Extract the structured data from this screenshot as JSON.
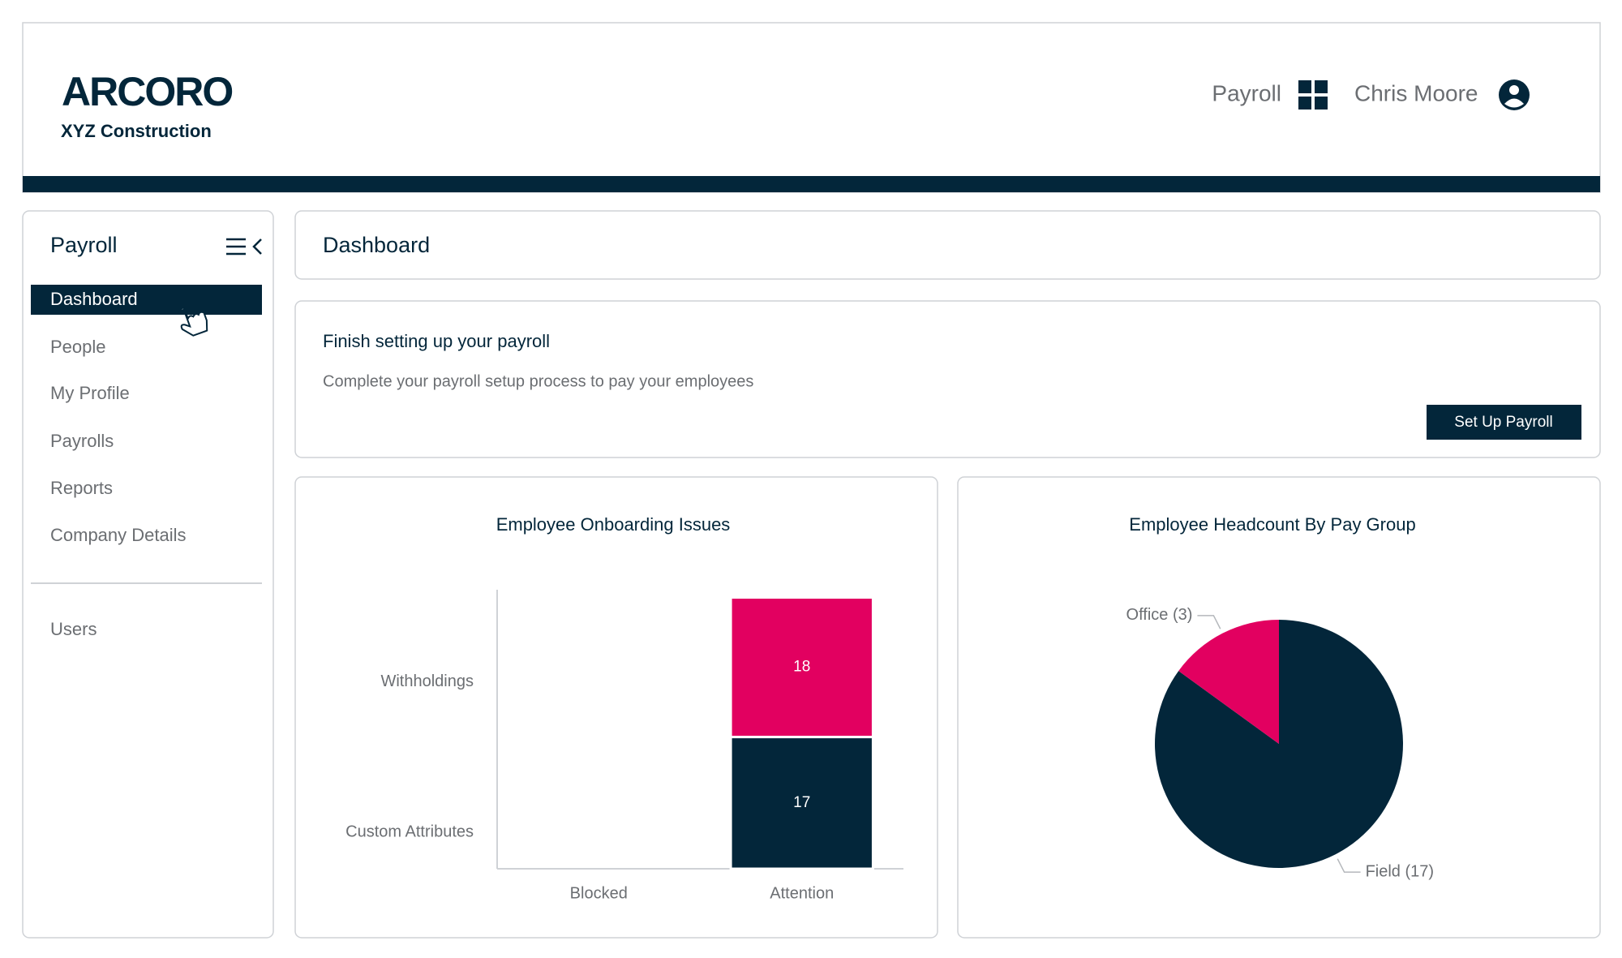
{
  "header": {
    "logo": "ARCORO",
    "company": "XYZ Construction",
    "app": "Payroll",
    "user": "Chris Moore"
  },
  "sidebar": {
    "title": "Payroll",
    "items": [
      "Dashboard",
      "People",
      "My Profile",
      "Payrolls",
      "Reports",
      "Company Details"
    ],
    "footer_items": [
      "Users"
    ]
  },
  "page": {
    "title": "Dashboard"
  },
  "setup_card": {
    "title": "Finish setting up your payroll",
    "description": "Complete your payroll setup process to pay your employees",
    "button": "Set Up Payroll"
  },
  "chart_data": [
    {
      "type": "bar",
      "stacked": true,
      "title": "Employee Onboarding Issues",
      "categories": [
        "Blocked",
        "Attention"
      ],
      "series": [
        {
          "name": "Custom Attributes",
          "color": "#03263a",
          "values": [
            0,
            17
          ]
        },
        {
          "name": "Withholdings",
          "color": "#e20060",
          "values": [
            0,
            18
          ]
        }
      ],
      "ylim": [
        0,
        36
      ]
    },
    {
      "type": "pie",
      "title": "Employee Headcount By Pay Group",
      "values": [
        17,
        3
      ],
      "value_labels": [
        "Field (17)",
        "Office (3)"
      ],
      "colors": [
        "#03263a",
        "#e20060"
      ]
    }
  ]
}
